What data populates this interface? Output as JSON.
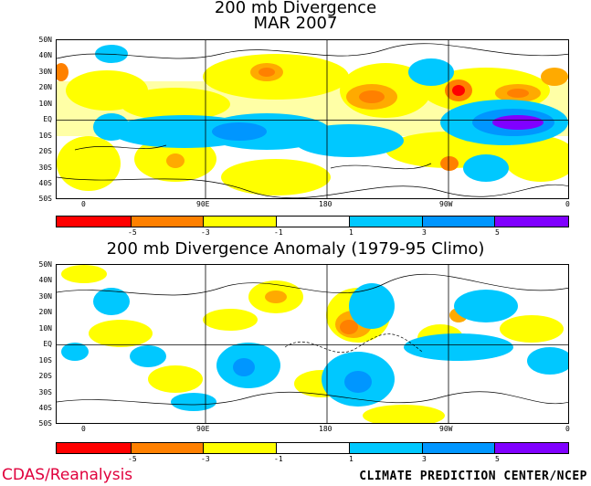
{
  "panel1": {
    "title_line1": "200 mb Divergence",
    "title_line2": "MAR 2007"
  },
  "panel2": {
    "title": "200 mb Divergence Anomaly (1979-95 Climo)"
  },
  "lat_labels": [
    "50N",
    "40N",
    "30N",
    "20N",
    "10N",
    "EQ",
    "10S",
    "20S",
    "30S",
    "40S",
    "50S"
  ],
  "lon_labels": [
    "0",
    "90E",
    "180",
    "90W",
    "0"
  ],
  "colorbar": {
    "colors": [
      "#ff0000",
      "#ff8000",
      "#ffaa00",
      "#ffff00",
      "#ffffff",
      "#00c8ff",
      "#0096ff",
      "#8000ff"
    ],
    "tick_labels": [
      "-5",
      "-3",
      "-1",
      "1",
      "3",
      "5"
    ]
  },
  "footer": {
    "left": "CDAS/Reanalysis",
    "right": "CLIMATE PREDICTION CENTER/NCEP"
  }
}
